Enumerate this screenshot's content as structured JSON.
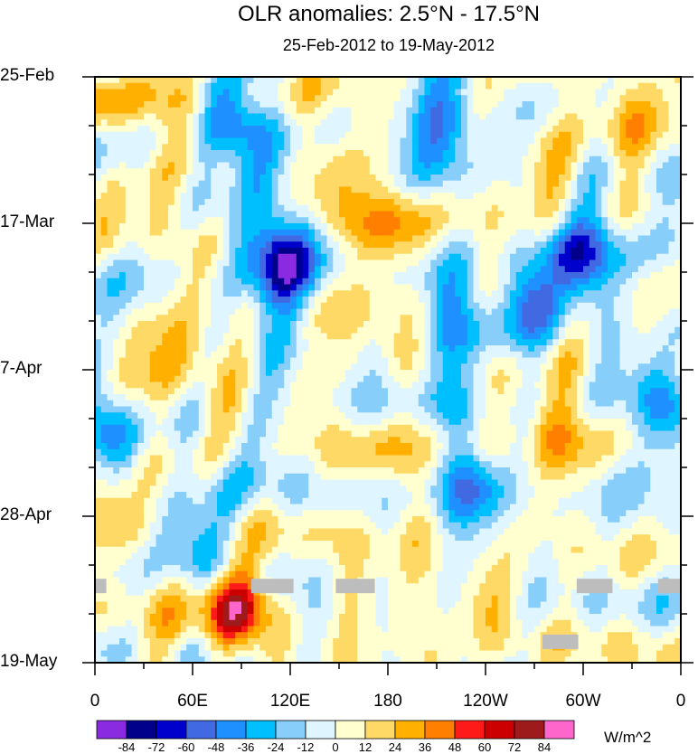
{
  "chart_data": {
    "type": "heatmap",
    "title": "OLR anomalies: 2.5°N - 17.5°N",
    "subtitle": "25-Feb-2012 to 19-May-2012",
    "x_tick_labels": [
      "0",
      "60E",
      "120E",
      "180",
      "120W",
      "60W",
      "0"
    ],
    "x_tick_values_deg_east": [
      0,
      60,
      120,
      180,
      240,
      300,
      360
    ],
    "y_tick_labels": [
      "25-Feb",
      "17-Mar",
      "7-Apr",
      "28-Apr",
      "19-May"
    ],
    "y_tick_values_day": [
      0,
      21,
      42,
      63,
      84
    ],
    "xlim": [
      0,
      360
    ],
    "ylim_days": [
      0,
      84
    ],
    "colorbar": {
      "units": "W/m^2",
      "levels": [
        -84,
        -72,
        -60,
        -48,
        -36,
        -24,
        -12,
        0,
        12,
        24,
        36,
        48,
        60,
        72,
        84
      ],
      "colors": [
        "#8a2be2",
        "#00008b",
        "#0000cd",
        "#4169e1",
        "#1e90ff",
        "#00bfff",
        "#87cefa",
        "#dff5ff",
        "#ffffd0",
        "#ffd966",
        "#ffb000",
        "#ff7f00",
        "#ff1a1a",
        "#cc0000",
        "#9e1b1b",
        "#ff66cc"
      ]
    },
    "anomaly_features": [
      {
        "lon": 45,
        "day": 20,
        "value": 18
      },
      {
        "lon": 85,
        "day": 75,
        "value": 40
      },
      {
        "lon": 88,
        "day": 77,
        "value": 55
      },
      {
        "lon": 88,
        "day": 7,
        "value": -55
      },
      {
        "lon": 118,
        "day": 25,
        "value": -60
      },
      {
        "lon": 115,
        "day": 30,
        "value": -50
      },
      {
        "lon": 135,
        "day": 10,
        "value": 20
      },
      {
        "lon": 165,
        "day": 22,
        "value": 20
      },
      {
        "lon": 185,
        "day": 20,
        "value": 24
      },
      {
        "lon": 215,
        "day": 8,
        "value": -40
      },
      {
        "lon": 270,
        "day": 32,
        "value": -50
      },
      {
        "lon": 295,
        "day": 25,
        "value": -65
      },
      {
        "lon": 350,
        "day": 47,
        "value": -55
      },
      {
        "lon": 10,
        "day": 52,
        "value": -50
      },
      {
        "lon": 280,
        "day": 50,
        "value": 30
      },
      {
        "lon": 185,
        "day": 60,
        "value": 20
      },
      {
        "lon": 240,
        "day": 75,
        "value": 20
      },
      {
        "lon": 10,
        "day": 63,
        "value": 30
      },
      {
        "lon": 60,
        "day": 40,
        "value": 24
      },
      {
        "lon": 235,
        "day": 59,
        "value": -50
      },
      {
        "lon": 225,
        "day": 35,
        "value": -40
      },
      {
        "lon": 60,
        "day": 67,
        "value": -40
      },
      {
        "lon": 320,
        "day": 5,
        "value": 24
      },
      {
        "lon": 190,
        "day": 80,
        "value": 20
      }
    ],
    "missing_data_blocks": [
      {
        "lon_start": 0,
        "lon_end": 7,
        "day": 73
      },
      {
        "lon_start": 96,
        "lon_end": 122,
        "day": 73
      },
      {
        "lon_start": 148,
        "lon_end": 172,
        "day": 73
      },
      {
        "lon_start": 296,
        "lon_end": 318,
        "day": 73
      },
      {
        "lon_start": 346,
        "lon_end": 360,
        "day": 73
      },
      {
        "lon_start": 275,
        "lon_end": 297,
        "day": 81
      }
    ]
  }
}
